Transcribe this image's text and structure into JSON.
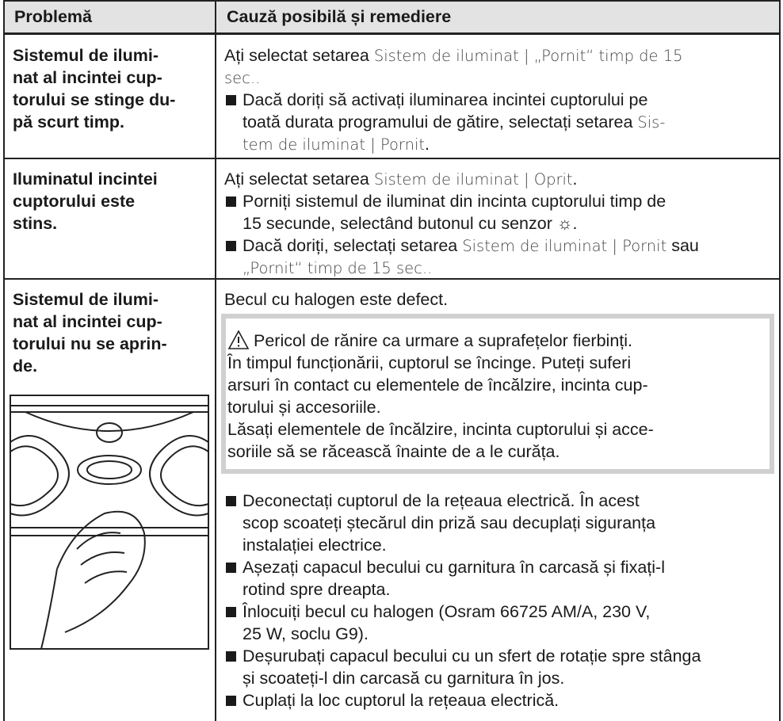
{
  "table": {
    "header": [
      "Problemă",
      "Cauză posibilă și remediere"
    ],
    "rows": [
      {
        "problem": [
          "Sistemul de ilumi-",
          "nat al incintei cup-",
          "torului se stinge du-",
          "pă scurt timp."
        ],
        "cause": [
          {
            "lines": [
              [
                "Ați selectat setarea ",
                {
                  "ui": "Sistem de iluminat | „Pornit“ timp de 15"
                }
              ],
              [
                {
                  "ui": "sec.."
                }
              ]
            ]
          },
          {
            "bullet": true,
            "lines": [
              [
                "Dacă doriți să activați iluminarea incintei cuptorului pe"
              ],
              [
                "toată durata programului de gătire, selectați setarea ",
                {
                  "ui": "Sis-"
                }
              ],
              [
                {
                  "ui": "tem de iluminat | Pornit"
                },
                "."
              ]
            ]
          }
        ]
      },
      {
        "problem": [
          "Iluminatul incintei",
          "cuptorului este",
          "stins."
        ],
        "cause": [
          {
            "lines": [
              [
                "Ați selectat setarea ",
                {
                  "ui": "Sistem de iluminat | Oprit"
                },
                "."
              ]
            ]
          },
          {
            "bullet": true,
            "lines": [
              [
                "Porniți sistemul de iluminat din incinta cuptorului timp de"
              ],
              [
                "15 secunde, selectând butonul cu senzor ☼."
              ]
            ]
          },
          {
            "bullet": true,
            "lines": [
              [
                "Dacă doriți, selectați setarea ",
                {
                  "ui": "Sistem de iluminat | Pornit"
                },
                " sau"
              ],
              [
                {
                  "ui": "„Pornit“ timp de 15 sec.."
                }
              ]
            ]
          }
        ]
      },
      {
        "problem": [
          "Sistemul de ilumi-",
          "nat al incintei cup-",
          "torului nu se aprin-",
          "de."
        ],
        "cause": [
          {
            "lines": [
              [
                "Becul cu halogen este defect."
              ]
            ]
          },
          {
            "warning": true,
            "lines": [
              [
                "Pericol de rănire ca urmare a suprafețelor fierbinți."
              ],
              [
                "În timpul funcționării, cuptorul se încinge. Puteți suferi"
              ],
              [
                "arsuri în contact cu elementele de încălzire, incinta cup-"
              ],
              [
                "torului și accesoriile."
              ],
              [
                "Lăsați elementele de încălzire, incinta cuptorului și acce-"
              ],
              [
                "soriile să se răcească înainte de a le curăța."
              ]
            ]
          },
          {
            "bullet": true,
            "lines": [
              [
                "Deconectați cuptorul de la rețeaua electrică. În acest"
              ],
              [
                "scop scoateți ștecărul din priză sau decuplați siguranța"
              ],
              [
                "instalației electrice."
              ]
            ]
          },
          {
            "bullet": true,
            "lines": [
              [
                "Așezați capacul becului cu garnitura în carcasă și fixați-l"
              ],
              [
                "rotind spre dreapta."
              ]
            ]
          },
          {
            "bullet": true,
            "lines": [
              [
                "Înlocuiți becul cu halogen (Osram 66725 AM/A, 230 V,"
              ],
              [
                "25 W, soclu G9)."
              ]
            ]
          },
          {
            "bullet": true,
            "lines": [
              [
                "Deșurubați capacul becului cu un sfert de rotație spre stânga"
              ],
              [
                "și scoateți-l din carcasă cu garnitura în jos."
              ]
            ]
          },
          {
            "bullet": true,
            "lines": [
              [
                "Cuplați la loc cuptorul la rețeaua electrică."
              ]
            ]
          }
        ]
      }
    ]
  }
}
